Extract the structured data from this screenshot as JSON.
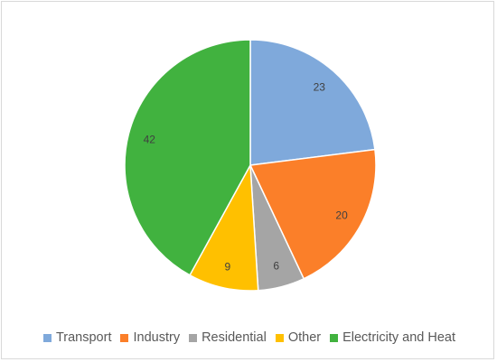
{
  "chart_data": {
    "type": "pie",
    "title": "",
    "categories": [
      "Transport",
      "Industry",
      "Residential",
      "Other",
      "Electricity and Heat"
    ],
    "values": [
      23,
      20,
      6,
      9,
      42
    ],
    "colors": [
      "#7fa9db",
      "#fb7f29",
      "#a5a5a5",
      "#ffc000",
      "#41b23f"
    ],
    "data_labels": [
      "23",
      "20",
      "6",
      "9",
      "42"
    ],
    "legend_position": "bottom",
    "start_angle_deg": 0,
    "direction": "clockwise"
  }
}
